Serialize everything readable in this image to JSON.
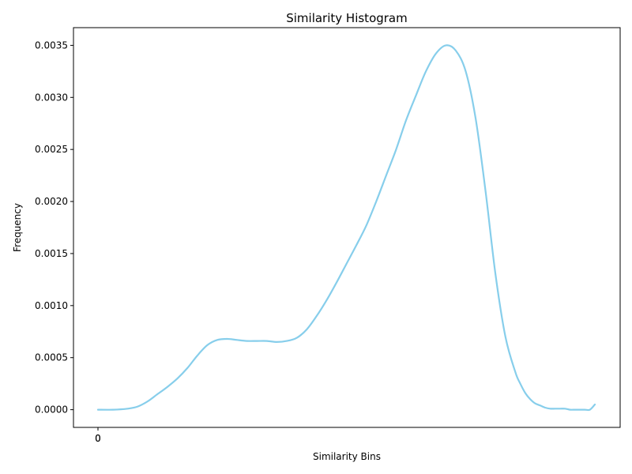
{
  "chart_data": {
    "type": "line",
    "title": "Similarity Histogram",
    "xlabel": "Similarity Bins",
    "ylabel": "Frequency",
    "x_tick_labels": [
      "0",
      "0"
    ],
    "y_ticks": [
      "0.0000",
      "0.0005",
      "0.0010",
      "0.0015",
      "0.0020",
      "0.0025",
      "0.0030",
      "0.0035"
    ],
    "ylim": [
      -0.00017,
      0.00367
    ],
    "grid": false,
    "legend": "none",
    "line_color": "#87ceeb",
    "series": [
      {
        "x": [
          0,
          0.03,
          0.06,
          0.08,
          0.1,
          0.12,
          0.14,
          0.16,
          0.18,
          0.2,
          0.22,
          0.24,
          0.26,
          0.28,
          0.3,
          0.32,
          0.34,
          0.36,
          0.38,
          0.4,
          0.42,
          0.44,
          0.46,
          0.48,
          0.5,
          0.52,
          0.54,
          0.56,
          0.58,
          0.6,
          0.62,
          0.64,
          0.66,
          0.68,
          0.7,
          0.72,
          0.74,
          0.76,
          0.78,
          0.8,
          0.82,
          0.84,
          0.85,
          0.86,
          0.87,
          0.88,
          0.89,
          0.9,
          0.91,
          0.92,
          0.93,
          0.94,
          0.95,
          0.96,
          0.97,
          0.98,
          0.99,
          1.0
        ],
        "values": [
          0,
          0,
          1e-05,
          3e-05,
          8e-05,
          0.00015,
          0.00022,
          0.0003,
          0.0004,
          0.00052,
          0.00062,
          0.00067,
          0.00068,
          0.00067,
          0.00066,
          0.00066,
          0.00066,
          0.00065,
          0.00066,
          0.00069,
          0.00077,
          0.0009,
          0.00105,
          0.00122,
          0.0014,
          0.00158,
          0.00177,
          0.002,
          0.00225,
          0.0025,
          0.00278,
          0.00302,
          0.00325,
          0.00342,
          0.0035,
          0.00345,
          0.00325,
          0.0028,
          0.0021,
          0.0013,
          0.0007,
          0.00036,
          0.00025,
          0.00016,
          0.0001,
          6e-05,
          4e-05,
          2e-05,
          1e-05,
          1e-05,
          1e-05,
          1e-05,
          0.0,
          0.0,
          0.0,
          0.0,
          0.0,
          5e-05
        ]
      }
    ]
  }
}
